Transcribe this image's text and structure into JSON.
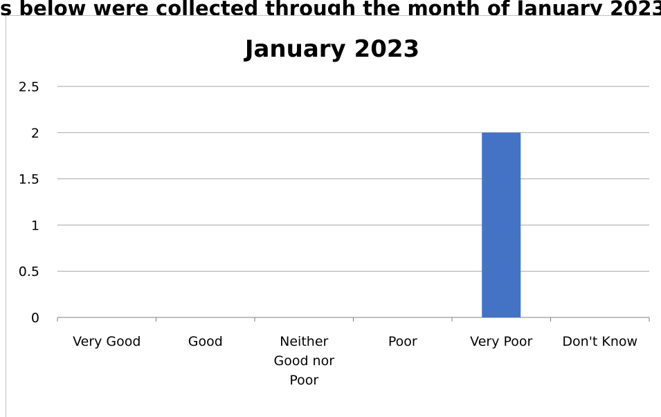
{
  "page": {
    "heading": "s below were collected through the month of January 2023"
  },
  "chart_data": {
    "type": "bar",
    "title": "January 2023",
    "categories": [
      "Very Good",
      "Good",
      "Neither Good nor Poor",
      "Poor",
      "Very Poor",
      "Don't Know"
    ],
    "category_lines": [
      [
        "Very Good"
      ],
      [
        "Good"
      ],
      [
        "Neither",
        "Good nor",
        "Poor"
      ],
      [
        "Poor"
      ],
      [
        "Very Poor"
      ],
      [
        "Don't Know"
      ]
    ],
    "values": [
      0,
      0,
      0,
      0,
      2,
      0
    ],
    "ylim": [
      0,
      2.5
    ],
    "yticks": [
      "0",
      "0.5",
      "1",
      "1.5",
      "2",
      "2.5"
    ],
    "xlabel": "",
    "ylabel": "",
    "grid": true,
    "bar_color": "#4472C4",
    "grid_color": "#a6a6a6"
  }
}
